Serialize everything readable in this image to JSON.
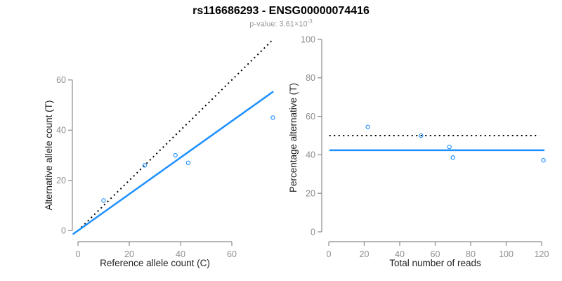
{
  "header": {
    "title": "rs116686293 - ENSG00000074416",
    "pvalue_prefix": "p-value: 3.61×10",
    "pvalue_exponent": "-3"
  },
  "colors": {
    "accent_blue": "#1E90FF",
    "identity_black": "#000000",
    "axis_gray": "#8b8b8b",
    "tick_text_gray": "#8e8e8e",
    "axis_title_color": "#222222",
    "subtitle_gray": "#9a9a9a",
    "background": "#ffffff"
  },
  "chart_data": [
    {
      "id": "left",
      "type": "scatter",
      "xlabel": "Reference allele count (C)",
      "ylabel": "Alternative allele count (T)",
      "xticks": [
        0,
        20,
        40,
        60
      ],
      "yticks": [
        0,
        20,
        40,
        60
      ],
      "xlim": [
        0,
        76.5
      ],
      "ylim": [
        0,
        76.5
      ],
      "grid": false,
      "points": [
        {
          "x": 10,
          "y": 12
        },
        {
          "x": 26,
          "y": 26
        },
        {
          "x": 38,
          "y": 30
        },
        {
          "x": 43,
          "y": 27
        },
        {
          "x": 76,
          "y": 45
        }
      ],
      "lines": [
        {
          "name": "identity-line",
          "style": "dotted",
          "color": "#000000",
          "width": 2,
          "slope": 1,
          "intercept": 0,
          "from": [
            0,
            0
          ],
          "to": [
            76,
            76
          ]
        },
        {
          "name": "fit-line",
          "style": "solid",
          "color": "#1E90FF",
          "width": 2.5,
          "slope": 0.727,
          "intercept": 0,
          "from": [
            -2,
            -1.45
          ],
          "to": [
            76.2,
            55.4
          ]
        }
      ]
    },
    {
      "id": "right",
      "type": "scatter",
      "xlabel": "Total number of reads",
      "ylabel": "Percentage alternative (T)",
      "xticks": [
        0,
        20,
        40,
        60,
        80,
        100,
        120
      ],
      "yticks": [
        0,
        20,
        40,
        60,
        80,
        100
      ],
      "xlim": [
        0,
        121.6
      ],
      "ylim": [
        0,
        100
      ],
      "grid": false,
      "points": [
        {
          "x": 22,
          "y": 54.5
        },
        {
          "x": 52,
          "y": 50
        },
        {
          "x": 68,
          "y": 44.1
        },
        {
          "x": 70,
          "y": 38.6
        },
        {
          "x": 121,
          "y": 37.2
        }
      ],
      "lines": [
        {
          "name": "null-50pct-line",
          "style": "dotted",
          "color": "#000000",
          "width": 2,
          "value": 50,
          "from": [
            0.3,
            50
          ],
          "to": [
            118.8,
            50
          ]
        },
        {
          "name": "estimate-line",
          "style": "solid",
          "color": "#1E90FF",
          "width": 2.5,
          "value": 42.4,
          "from": [
            0.3,
            42.4
          ],
          "to": [
            121.6,
            42.4
          ]
        }
      ]
    }
  ]
}
